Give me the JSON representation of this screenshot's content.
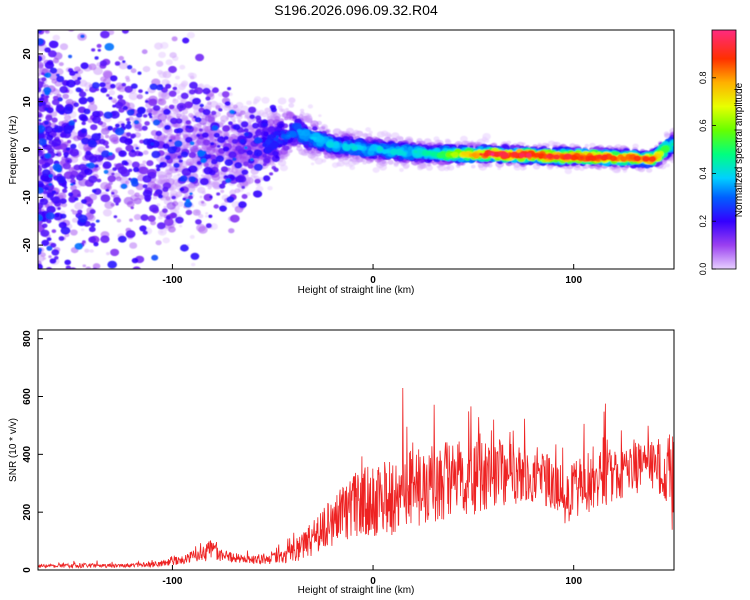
{
  "title": "S196.2026.096.09.32.R04",
  "chart_data": [
    {
      "type": "heatmap",
      "xlabel": "Height of straight line (km)",
      "ylabel": "Frequency (Hz)",
      "xlim": [
        -167,
        150
      ],
      "ylim": [
        -25,
        25
      ],
      "x_ticks": [
        -100,
        0,
        100
      ],
      "y_ticks": [
        -20,
        -10,
        0,
        10,
        20
      ],
      "colorbar": {
        "label": "Normalized spectral amplitude",
        "range": [
          0.0,
          1.0
        ],
        "ticks": [
          0.0,
          0.2,
          0.4,
          0.6,
          0.8
        ],
        "colors": [
          "#e8d0ff",
          "#8a2be2",
          "#4400ff",
          "#0000ff",
          "#00c8ff",
          "#00ff66",
          "#ccff00",
          "#ffcc00",
          "#ff4400",
          "#ff0055",
          "#ff3399"
        ]
      },
      "description_points": [
        {
          "x": -160,
          "f": 0,
          "amp": 0.05,
          "spread_hz": 25
        },
        {
          "x": -100,
          "f": 0,
          "amp": 0.1,
          "spread_hz": 18
        },
        {
          "x": -60,
          "f": 0,
          "amp": 0.15,
          "spread_hz": 8
        },
        {
          "x": -40,
          "f": 4,
          "amp": 0.3,
          "spread_hz": 5
        },
        {
          "x": -20,
          "f": 1,
          "amp": 0.35,
          "spread_hz": 3
        },
        {
          "x": 0,
          "f": 0,
          "amp": 0.35,
          "spread_hz": 3
        },
        {
          "x": 30,
          "f": -1,
          "amp": 0.4,
          "spread_hz": 2.5
        },
        {
          "x": 60,
          "f": -1,
          "amp": 0.85,
          "spread_hz": 2
        },
        {
          "x": 100,
          "f": -1.5,
          "amp": 0.8,
          "spread_hz": 2
        },
        {
          "x": 140,
          "f": -2,
          "amp": 0.75,
          "spread_hz": 2
        },
        {
          "x": 148,
          "f": 1,
          "amp": 0.4,
          "spread_hz": 3
        }
      ]
    },
    {
      "type": "line",
      "xlabel": "Height of straight line (km)",
      "ylabel": "SNR (10 * v/v)",
      "xlim": [
        -167,
        150
      ],
      "ylim": [
        0,
        830
      ],
      "x_ticks": [
        -100,
        0,
        100
      ],
      "y_ticks": [
        0,
        200,
        400,
        600,
        800
      ],
      "color": "#ee2222",
      "envelope": {
        "x": [
          -167,
          -140,
          -110,
          -95,
          -88,
          -80,
          -72,
          -60,
          -45,
          -35,
          -25,
          -18,
          -10,
          -5,
          0,
          10,
          20,
          30,
          40,
          50,
          60,
          70,
          80,
          90,
          95,
          100,
          110,
          120,
          130,
          140,
          145,
          148,
          150
        ],
        "mean": [
          15,
          15,
          18,
          35,
          50,
          70,
          45,
          35,
          45,
          80,
          140,
          180,
          220,
          240,
          230,
          260,
          290,
          300,
          310,
          320,
          330,
          330,
          320,
          300,
          240,
          270,
          320,
          330,
          350,
          370,
          350,
          330,
          300
        ],
        "amp": [
          12,
          12,
          15,
          25,
          40,
          60,
          30,
          25,
          40,
          80,
          130,
          150,
          180,
          200,
          210,
          230,
          260,
          250,
          240,
          220,
          200,
          180,
          150,
          160,
          140,
          170,
          190,
          160,
          150,
          160,
          180,
          250,
          350
        ]
      }
    }
  ]
}
